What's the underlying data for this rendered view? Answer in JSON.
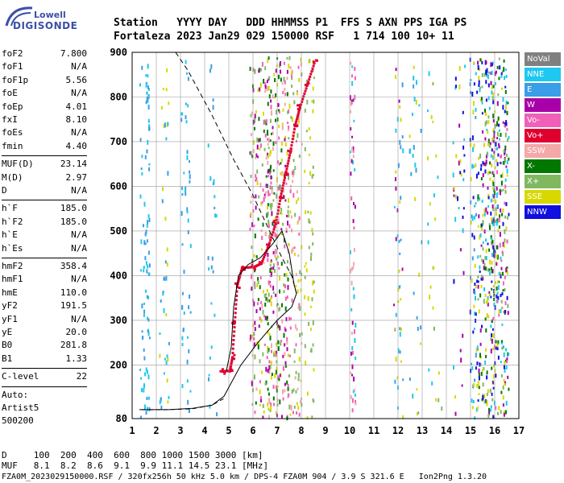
{
  "logo": {
    "line1": "Lowell",
    "line2": "DIGISONDE"
  },
  "header": {
    "row1": "Station   YYYY DAY   DDD HHMMSS P1  FFS S AXN PPS IGA PS",
    "row2": "Fortaleza 2023 Jan29 029 150000 RSF   1 714 100 10+ 11"
  },
  "sidebar": {
    "group1": [
      {
        "k": "foF2",
        "v": "7.800"
      },
      {
        "k": "foF1",
        "v": "N/A"
      },
      {
        "k": "foF1p",
        "v": "5.56"
      },
      {
        "k": "foE",
        "v": "N/A"
      },
      {
        "k": "foEp",
        "v": "4.01"
      },
      {
        "k": "fxI",
        "v": "8.10"
      },
      {
        "k": "foEs",
        "v": "N/A"
      },
      {
        "k": "fmin",
        "v": "4.40"
      }
    ],
    "group2": [
      {
        "k": "MUF(D)",
        "v": "23.14"
      },
      {
        "k": "M(D)",
        "v": "2.97"
      },
      {
        "k": "D",
        "v": "N/A"
      }
    ],
    "group3": [
      {
        "k": "h`F",
        "v": "185.0"
      },
      {
        "k": "h`F2",
        "v": "185.0"
      },
      {
        "k": "h`E",
        "v": "N/A"
      },
      {
        "k": "h`Es",
        "v": "N/A"
      }
    ],
    "group4": [
      {
        "k": "hmF2",
        "v": "358.4"
      },
      {
        "k": "hmF1",
        "v": "N/A"
      },
      {
        "k": "hmE",
        "v": "110.0"
      },
      {
        "k": "yF2",
        "v": "191.5"
      },
      {
        "k": "yF1",
        "v": "N/A"
      },
      {
        "k": "yE",
        "v": "20.0"
      },
      {
        "k": "B0",
        "v": "281.8"
      },
      {
        "k": "B1",
        "v": "1.33"
      }
    ],
    "clevel": {
      "k": "C-level",
      "v": "22"
    },
    "auto": [
      "Auto:",
      "Artist5",
      "500200"
    ]
  },
  "legend": [
    {
      "label": "NoVal",
      "color": "#808080"
    },
    {
      "label": "NNE",
      "color": "#1ec8f0"
    },
    {
      "label": "E",
      "color": "#3a9ee8"
    },
    {
      "label": "W",
      "color": "#a800a8"
    },
    {
      "label": "Vo-",
      "color": "#f060b8"
    },
    {
      "label": "Vo+",
      "color": "#e00030"
    },
    {
      "label": "SSW",
      "color": "#f4a8a8"
    },
    {
      "label": "X-",
      "color": "#007800"
    },
    {
      "label": "X+",
      "color": "#80b860"
    },
    {
      "label": "SSE",
      "color": "#d8d800"
    },
    {
      "label": "NNW",
      "color": "#1010e0"
    }
  ],
  "footer": {
    "d_row": "D     100  200  400  600  800 1000 1500 3000 [km]",
    "muf_row": "MUF   8.1  8.2  8.6  9.1  9.9 11.1 14.5 23.1 [MHz]",
    "file_row": "FZA0M_2023029150000.RSF / 320fx256h 50 kHz 5.0 km / DPS-4 FZA0M 904 / 3.9 S 321.6 E   Ion2Png 1.3.20"
  },
  "chart_data": {
    "type": "scatter",
    "title": "",
    "xlabel": "",
    "ylabel": "",
    "xlim": [
      1,
      17
    ],
    "ylim": [
      80,
      900
    ],
    "xticks": [
      1,
      2,
      3,
      4,
      5,
      6,
      7,
      8,
      9,
      10,
      11,
      12,
      13,
      14,
      15,
      16,
      17
    ],
    "yticks": [
      80,
      200,
      300,
      400,
      500,
      600,
      700,
      800,
      900
    ],
    "grid": true,
    "virtual_height_trace": [
      {
        "f": 4.7,
        "h": 188
      },
      {
        "f": 5.0,
        "h": 190
      },
      {
        "f": 5.1,
        "h": 220
      },
      {
        "f": 5.2,
        "h": 300
      },
      {
        "f": 5.3,
        "h": 380
      },
      {
        "f": 5.5,
        "h": 420
      },
      {
        "f": 6.0,
        "h": 422
      },
      {
        "f": 6.3,
        "h": 430
      },
      {
        "f": 6.6,
        "h": 470
      },
      {
        "f": 6.9,
        "h": 520
      },
      {
        "f": 7.1,
        "h": 580
      },
      {
        "f": 7.3,
        "h": 630
      },
      {
        "f": 7.5,
        "h": 680
      },
      {
        "f": 7.7,
        "h": 740
      },
      {
        "f": 7.9,
        "h": 780
      },
      {
        "f": 8.2,
        "h": 830
      },
      {
        "f": 8.5,
        "h": 880
      }
    ],
    "profile_solid": [
      {
        "f": 4.9,
        "h": 187
      },
      {
        "f": 5.1,
        "h": 240
      },
      {
        "f": 5.2,
        "h": 330
      },
      {
        "f": 5.4,
        "h": 400
      },
      {
        "f": 5.8,
        "h": 425
      },
      {
        "f": 6.3,
        "h": 440
      },
      {
        "f": 6.8,
        "h": 470
      },
      {
        "f": 7.2,
        "h": 500
      },
      {
        "f": 7.5,
        "h": 450
      },
      {
        "f": 7.7,
        "h": 380
      },
      {
        "f": 7.8,
        "h": 360
      },
      {
        "f": 7.6,
        "h": 330
      },
      {
        "f": 7.0,
        "h": 300
      },
      {
        "f": 6.2,
        "h": 250
      },
      {
        "f": 5.5,
        "h": 200
      },
      {
        "f": 4.8,
        "h": 130
      },
      {
        "f": 4.3,
        "h": 110
      },
      {
        "f": 3.5,
        "h": 103
      },
      {
        "f": 2.5,
        "h": 100
      },
      {
        "f": 1.3,
        "h": 100
      }
    ],
    "profile_dashed": [
      {
        "f": 1.4,
        "h": 100
      },
      {
        "f": 2.5,
        "h": 100
      },
      {
        "f": 3.5,
        "h": 102
      },
      {
        "f": 4.3,
        "h": 110
      },
      {
        "f": 4.8,
        "h": 125
      }
    ],
    "topside_dashed": [
      {
        "f": 2.8,
        "h": 900
      },
      {
        "f": 3.3,
        "h": 860
      },
      {
        "f": 4.3,
        "h": 760
      },
      {
        "f": 5.2,
        "h": 660
      },
      {
        "f": 6.0,
        "h": 580
      },
      {
        "f": 6.6,
        "h": 510
      },
      {
        "f": 7.2,
        "h": 440
      },
      {
        "f": 7.6,
        "h": 400
      },
      {
        "f": 7.8,
        "h": 360
      }
    ]
  }
}
